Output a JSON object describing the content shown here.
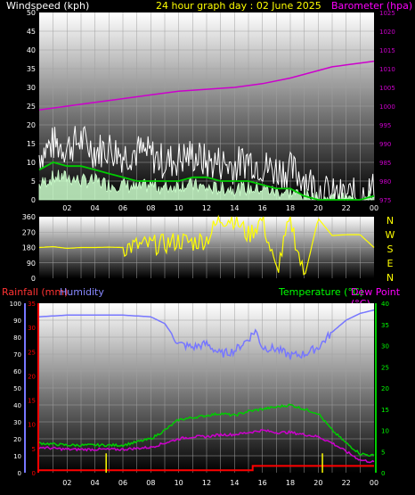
{
  "header": {
    "left_label": "Windspeed (kph)",
    "title": "24 hour graph day : 02 June 2025",
    "right_label": "Barometer (hpa)"
  },
  "directions": [
    "N",
    "W",
    "S",
    "E",
    "N"
  ],
  "bottom_header": {
    "rainfall": "Rainfall (mm)",
    "humidity": "Humidity",
    "temperature": "Temperature (°C)",
    "dewpoint": "Dew Point (°C)"
  },
  "colors": {
    "wind_gust": "#ffffff",
    "wind_avg": "#ccffcc",
    "wind_line": "#00cc00",
    "barometer": "#cc00cc",
    "direction": "#ffff00",
    "rainfall": "#ff0000",
    "rain_rate": "#ffff00",
    "humidity": "#7777ff",
    "temperature": "#00cc00",
    "dewpoint": "#cc00cc"
  },
  "chart_data": [
    {
      "type": "line",
      "title": "24 hour graph day : 02 June 2025",
      "x_ticks": [
        "02",
        "04",
        "06",
        "08",
        "10",
        "12",
        "14",
        "16",
        "18",
        "20",
        "22",
        "00"
      ],
      "y_left": {
        "label": "Windspeed (kph)",
        "ticks": [
          0,
          5,
          10,
          15,
          20,
          25,
          30,
          35,
          40,
          45,
          50
        ],
        "lim": [
          0,
          50
        ]
      },
      "y_right": {
        "label": "Barometer (hpa)",
        "ticks": [
          975,
          980,
          985,
          990,
          995,
          1000,
          1005,
          1010,
          1015,
          1020,
          1025
        ],
        "lim": [
          975,
          1025
        ]
      },
      "series": [
        {
          "name": "Windspeed (kph)",
          "axis": "left",
          "role": "gust",
          "x": [
            0,
            1,
            2,
            3,
            4,
            5,
            6,
            7,
            8,
            9,
            10,
            11,
            12,
            13,
            14,
            15,
            16,
            17,
            18,
            19,
            20,
            21,
            22,
            23,
            24
          ],
          "y": [
            12,
            15,
            14,
            16,
            13,
            14,
            12,
            13,
            12,
            10,
            11,
            12,
            10,
            10,
            9,
            11,
            9,
            8,
            8,
            6,
            3,
            1,
            1,
            1,
            3
          ]
        },
        {
          "name": "Average wind",
          "axis": "left",
          "role": "avg",
          "x": [
            0,
            1,
            2,
            3,
            4,
            5,
            6,
            7,
            8,
            9,
            10,
            11,
            12,
            13,
            14,
            15,
            16,
            17,
            18,
            19,
            20,
            21,
            22,
            23,
            24
          ],
          "y": [
            4,
            6,
            6,
            5,
            5,
            4,
            4,
            3,
            4,
            3,
            4,
            4,
            3,
            3,
            3,
            3,
            3,
            2,
            2,
            1,
            0,
            0,
            0,
            0,
            1
          ]
        },
        {
          "name": "Wind speed",
          "axis": "left",
          "role": "line",
          "x": [
            0,
            1,
            2,
            3,
            4,
            5,
            6,
            7,
            8,
            9,
            10,
            11,
            12,
            13,
            14,
            15,
            16,
            17,
            18,
            19,
            20,
            21,
            22,
            23,
            24
          ],
          "y": [
            8,
            10,
            9,
            9,
            8,
            7,
            6,
            5,
            5,
            5,
            5,
            6,
            6,
            5,
            5,
            5,
            4,
            3,
            3,
            1,
            0,
            0,
            0,
            0,
            1
          ]
        },
        {
          "name": "Barometer (hpa)",
          "axis": "right",
          "x": [
            0,
            2,
            4,
            6,
            8,
            10,
            12,
            14,
            16,
            18,
            20,
            21,
            22,
            23,
            24
          ],
          "y": [
            999,
            1000,
            1001,
            1002,
            1003,
            1004,
            1004.5,
            1005,
            1006,
            1007.5,
            1009.5,
            1010.5,
            1011,
            1011.5,
            1012
          ]
        }
      ]
    },
    {
      "type": "line",
      "y_left": {
        "ticks": [
          0,
          90,
          180,
          270,
          360
        ],
        "lim": [
          0,
          360
        ]
      },
      "y_right": {
        "ticks": [
          "N",
          "W",
          "S",
          "E",
          "N"
        ]
      },
      "series": [
        {
          "name": "Wind direction",
          "x": [
            0,
            1,
            2,
            3,
            4,
            5,
            6,
            7,
            8,
            9,
            10,
            11,
            12,
            13,
            14,
            15,
            16,
            17,
            18,
            19,
            20,
            21,
            22,
            23,
            24
          ],
          "y": [
            180,
            185,
            175,
            180,
            180,
            182,
            180,
            190,
            195,
            200,
            220,
            210,
            230,
            350,
            350,
            250,
            350,
            30,
            350,
            0,
            350,
            250,
            255,
            255,
            180
          ]
        }
      ]
    },
    {
      "type": "line",
      "legend": [
        "Rainfall (mm)",
        "Humidity",
        "Temperature (°C)",
        "Dew Point (°C)"
      ],
      "x_ticks": [
        "02",
        "04",
        "06",
        "08",
        "10",
        "12",
        "14",
        "16",
        "18",
        "20",
        "22",
        "00"
      ],
      "y_humidity": {
        "ticks": [
          0,
          10,
          20,
          30,
          40,
          50,
          60,
          70,
          80,
          90,
          100
        ],
        "lim": [
          0,
          100
        ]
      },
      "y_rain": {
        "ticks": [
          0,
          5,
          10,
          15,
          20,
          25,
          30,
          35
        ],
        "lim": [
          0,
          35
        ]
      },
      "y_temp": {
        "ticks": [
          0,
          5,
          10,
          15,
          20,
          25,
          30,
          35,
          40
        ],
        "lim": [
          0,
          40
        ]
      },
      "series": [
        {
          "name": "Humidity",
          "axis": "humidity",
          "x": [
            0,
            2,
            4,
            6,
            8,
            9,
            10,
            11,
            12,
            13,
            14,
            15,
            15.5,
            16,
            17,
            18,
            19,
            20,
            21,
            22,
            23,
            24
          ],
          "y": [
            92,
            93,
            93,
            93,
            92,
            88,
            76,
            74,
            76,
            70,
            72,
            79,
            84,
            74,
            73,
            69,
            70,
            74,
            83,
            90,
            94,
            96
          ]
        },
        {
          "name": "Temperature (°C)",
          "axis": "temp",
          "x": [
            0,
            2,
            4,
            6,
            8,
            9,
            10,
            11,
            12,
            13,
            14,
            15,
            16,
            17,
            18,
            19,
            20,
            21,
            22,
            23,
            24
          ],
          "y": [
            7,
            6.5,
            6.5,
            6.5,
            8,
            10,
            12.5,
            13,
            13.5,
            14,
            13.5,
            14.5,
            15,
            15.5,
            16,
            15,
            14,
            10,
            7,
            4.5,
            4
          ]
        },
        {
          "name": "Dew Point (°C)",
          "axis": "temp",
          "x": [
            0,
            2,
            4,
            6,
            8,
            9,
            10,
            11,
            12,
            13,
            14,
            15,
            16,
            17,
            18,
            19,
            20,
            21,
            22,
            23,
            24
          ],
          "y": [
            6,
            5.5,
            5.5,
            5.5,
            6,
            7,
            8,
            8.5,
            8.5,
            9,
            9,
            9.5,
            10,
            9.5,
            9.5,
            9,
            8.5,
            7,
            5,
            3,
            2.5
          ]
        },
        {
          "name": "Rainfall (mm)",
          "axis": "rain",
          "x": [
            0,
            2,
            4,
            6,
            8,
            10,
            12,
            14,
            15.3,
            16,
            18,
            20,
            22,
            24
          ],
          "y": [
            0.5,
            0.5,
            0.5,
            0.5,
            0.5,
            0.5,
            0.5,
            0.5,
            1.4,
            1.4,
            1.4,
            1.4,
            1.4,
            1.4
          ]
        },
        {
          "name": "Rain rate",
          "axis": "rain",
          "role": "spikes",
          "x": [
            4.8,
            20.3
          ],
          "y": [
            4,
            4
          ]
        }
      ]
    }
  ]
}
